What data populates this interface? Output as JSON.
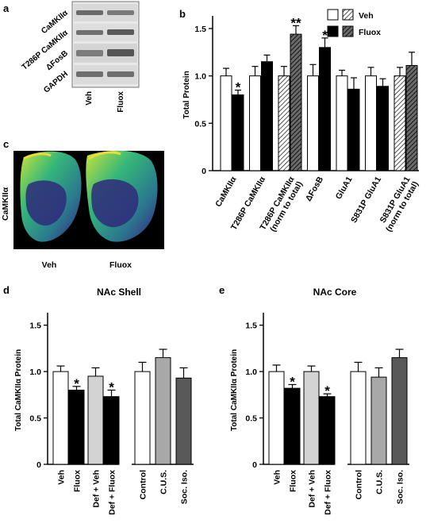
{
  "figure": {
    "panel_labels": [
      "a",
      "b",
      "c",
      "d",
      "e"
    ]
  },
  "blot": {
    "rows": [
      "CaMKIIα",
      "T286P CaMKIIα",
      "ΔFosB",
      "GAPDH"
    ],
    "columns": [
      "Veh",
      "Fluox"
    ]
  },
  "brain": {
    "label": "CaMKIIα",
    "captions": [
      "Veh",
      "Fluox"
    ]
  },
  "chart_data": [
    {
      "type": "bar",
      "panel": "b",
      "title": "",
      "ylabel": "Total Protein",
      "xlabel": "",
      "ylim": [
        0,
        1.6
      ],
      "yticks": [
        "0",
        "0.5",
        "1.0",
        "1.5"
      ],
      "legend": {
        "placement": "top-right",
        "entries": [
          "Veh",
          "Fluox"
        ]
      },
      "categories": [
        "CaMKIIα",
        "T286P CaMKIIα",
        "T286P CaMKIIα\n(norm to total)",
        "ΔFosB",
        "GluA1",
        "S831P GluA1",
        "S831P GluA1\n(norm to total)"
      ],
      "series": [
        {
          "name": "Veh",
          "values": [
            1.0,
            1.0,
            1.0,
            1.0,
            1.0,
            1.0,
            1.0
          ],
          "errors": [
            0.08,
            0.1,
            0.1,
            0.12,
            0.06,
            0.09,
            0.09
          ]
        },
        {
          "name": "Fluox",
          "values": [
            0.8,
            1.15,
            1.44,
            1.3,
            0.86,
            0.89,
            1.11
          ],
          "errors": [
            0.05,
            0.07,
            0.09,
            0.1,
            0.12,
            0.08,
            0.14
          ]
        }
      ],
      "hatched_categories": [
        "T286P CaMKIIα\n(norm to total)",
        "S831P GluA1\n(norm to total)"
      ],
      "annotations": [
        {
          "category": "CaMKIIα",
          "series": "Fluox",
          "text": "*"
        },
        {
          "category": "T286P CaMKIIα\n(norm to total)",
          "series": "Fluox",
          "text": "**"
        },
        {
          "category": "ΔFosB",
          "series": "Fluox",
          "text": "*"
        }
      ],
      "grid": false
    },
    {
      "type": "bar",
      "panel": "d",
      "title": "NAc Shell",
      "ylabel": "Total CaMKIIα Protein",
      "xlabel": "",
      "ylim": [
        0,
        1.6
      ],
      "yticks": [
        "0",
        "0.5",
        "1.0",
        "1.5"
      ],
      "categories": [
        "Veh",
        "Fluox",
        "Def + Veh",
        "Def + Fluox",
        "Control",
        "C.U.S.",
        "Soc. Iso."
      ],
      "values": [
        1.0,
        0.8,
        0.95,
        0.73,
        1.0,
        1.15,
        0.93
      ],
      "errors": [
        0.06,
        0.04,
        0.09,
        0.07,
        0.1,
        0.09,
        0.11
      ],
      "colors": [
        "#ffffff",
        "#000000",
        "#d3d3d3",
        "#000000",
        "#ffffff",
        "#a8a8a8",
        "#595959"
      ],
      "annotations": [
        {
          "category": "Fluox",
          "text": "*"
        },
        {
          "category": "Def + Fluox",
          "text": "*"
        }
      ],
      "grid": false
    },
    {
      "type": "bar",
      "panel": "e",
      "title": "NAc Core",
      "ylabel": "Total CaMKIIα Protein",
      "xlabel": "",
      "ylim": [
        0,
        1.6
      ],
      "yticks": [
        "0",
        "0.5",
        "1.0",
        "1.5"
      ],
      "categories": [
        "Veh",
        "Fluox",
        "Def + Veh",
        "Def + Fluox",
        "Control",
        "C.U.S.",
        "Soc. Iso."
      ],
      "values": [
        1.0,
        0.82,
        1.0,
        0.73,
        1.0,
        0.94,
        1.15
      ],
      "errors": [
        0.07,
        0.04,
        0.06,
        0.03,
        0.1,
        0.1,
        0.09
      ],
      "colors": [
        "#ffffff",
        "#000000",
        "#d3d3d3",
        "#000000",
        "#ffffff",
        "#a8a8a8",
        "#595959"
      ],
      "annotations": [
        {
          "category": "Fluox",
          "text": "*"
        },
        {
          "category": "Def + Fluox",
          "text": "*"
        }
      ],
      "grid": false
    }
  ]
}
